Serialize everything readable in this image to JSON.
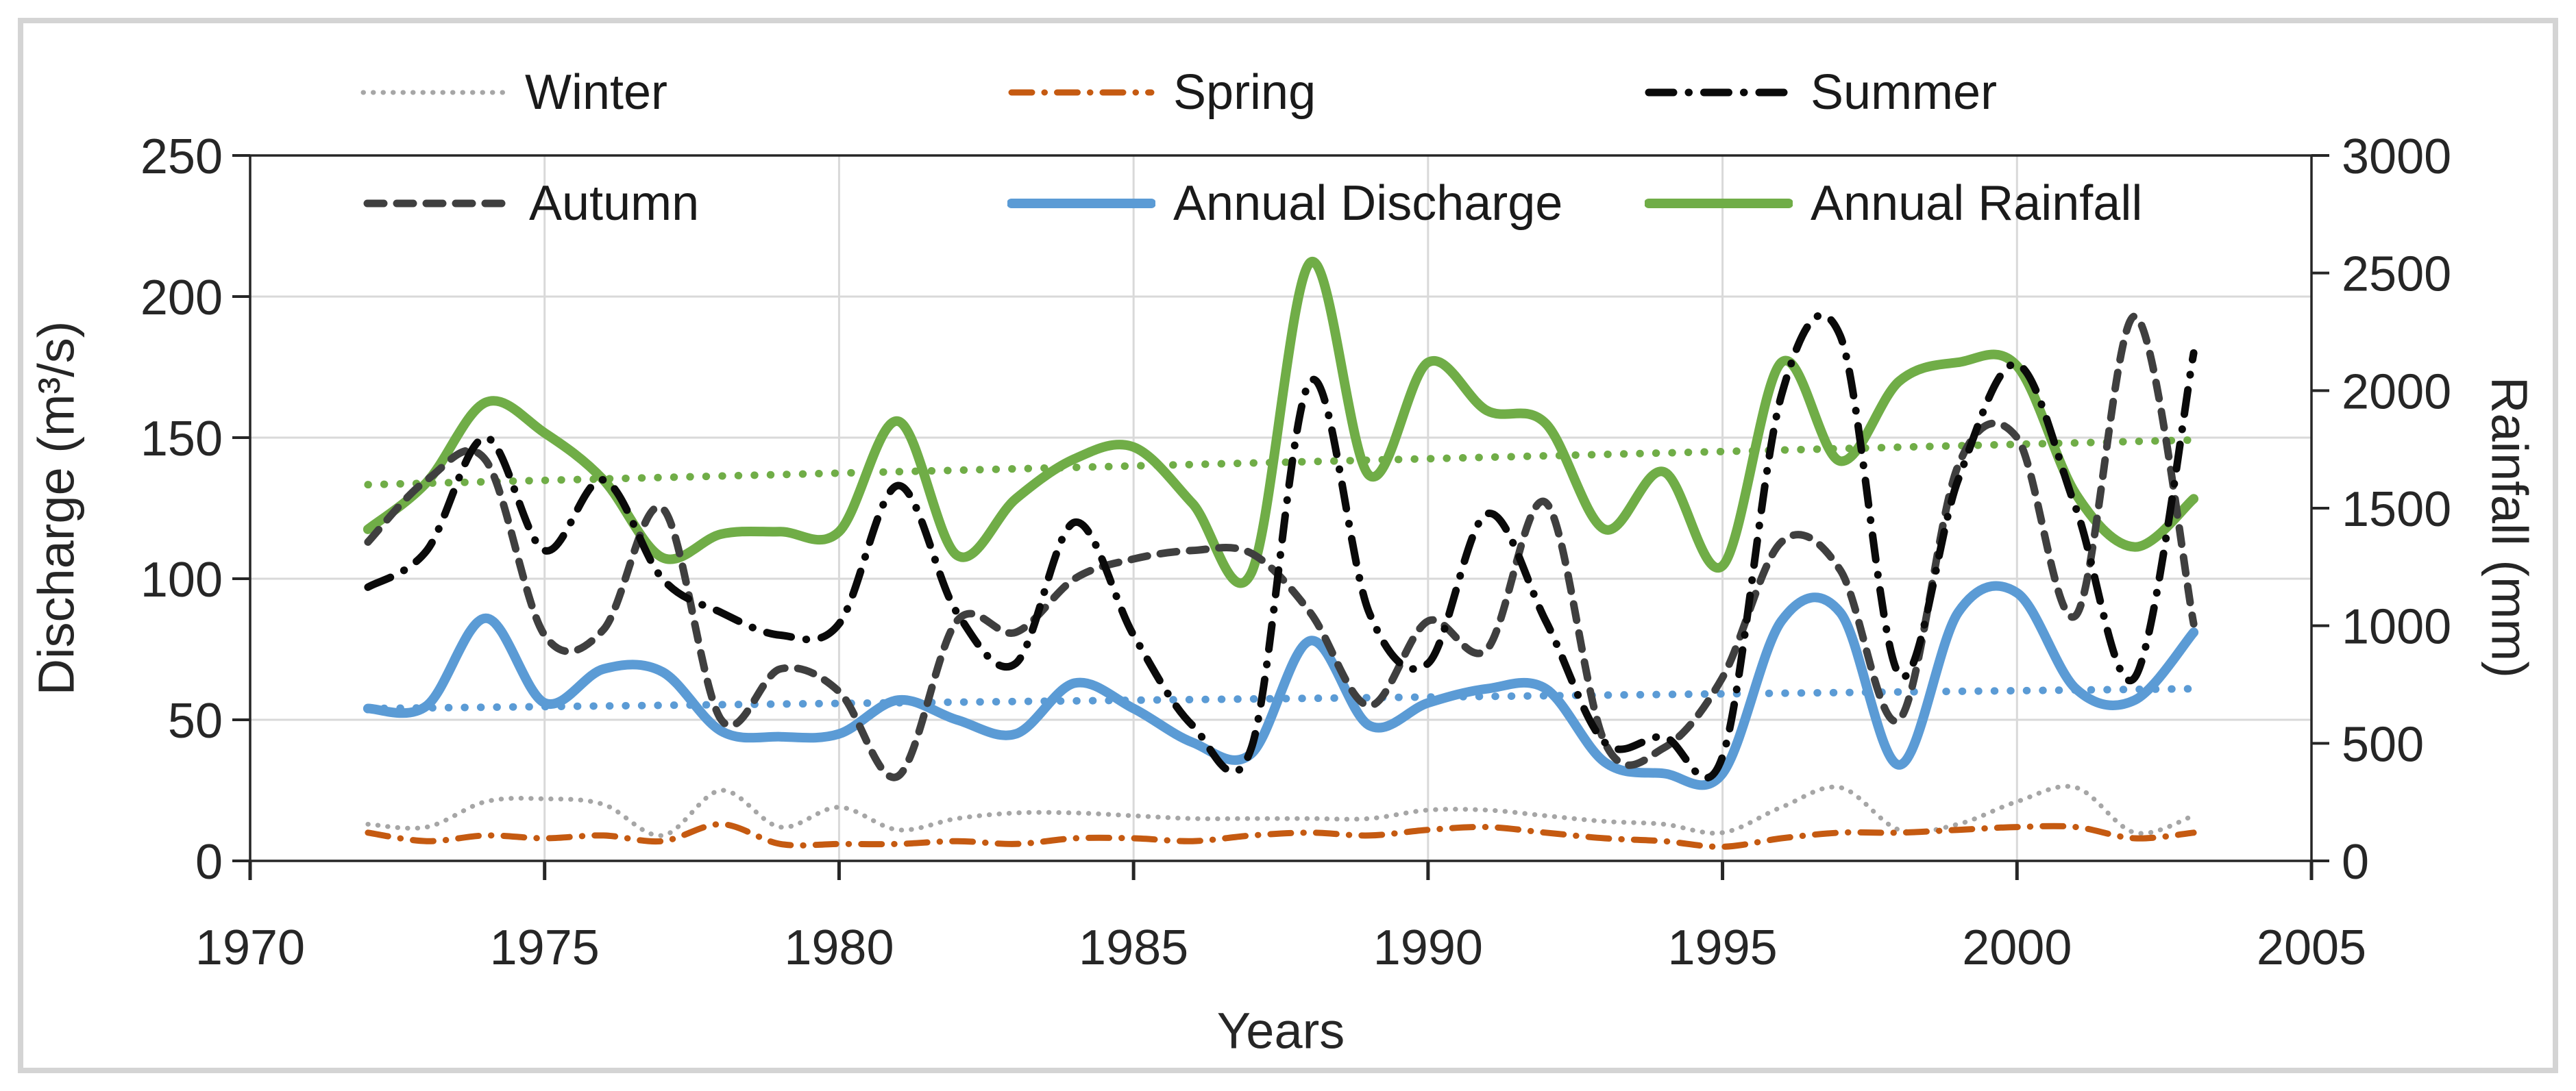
{
  "chart_data": {
    "type": "line",
    "title": "",
    "x_axis": {
      "title": "Years",
      "min": 1970,
      "max": 2005,
      "ticks": [
        1970,
        1975,
        1980,
        1985,
        1990,
        1995,
        2000,
        2005
      ]
    },
    "left_axis": {
      "title": "Discharge (m³/s)",
      "min": 0,
      "max": 250,
      "ticks": [
        0,
        50,
        100,
        150,
        200,
        250
      ]
    },
    "right_axis": {
      "title": "Rainfall (mm)",
      "min": 0,
      "max": 3000,
      "ticks": [
        0,
        500,
        1000,
        1500,
        2000,
        2500,
        3000
      ]
    },
    "grid": true,
    "legend_position": "top",
    "x": [
      1972,
      1973,
      1974,
      1975,
      1976,
      1977,
      1978,
      1979,
      1980,
      1981,
      1982,
      1983,
      1984,
      1985,
      1986,
      1987,
      1988,
      1989,
      1990,
      1991,
      1992,
      1993,
      1994,
      1995,
      1996,
      1997,
      1998,
      1999,
      2000,
      2001,
      2002,
      2003
    ],
    "series": [
      {
        "key": "winter",
        "label": "Winter",
        "axis": "left",
        "color": "#a6a6a6",
        "style": "dot",
        "width": 7,
        "values": [
          13,
          12,
          21,
          22,
          20,
          9,
          25,
          12,
          19,
          11,
          15,
          17,
          17,
          16,
          15,
          15,
          15,
          15,
          18,
          18,
          16,
          14,
          13,
          10,
          19,
          26,
          11,
          13,
          21,
          26,
          10,
          16
        ]
      },
      {
        "key": "spring",
        "label": "Spring",
        "axis": "left",
        "color": "#c55a11",
        "style": "dashdot-small",
        "width": 9,
        "values": [
          10,
          7,
          9,
          8,
          9,
          7,
          13,
          6,
          6,
          6,
          7,
          6,
          8,
          8,
          7,
          9,
          10,
          9,
          11,
          12,
          10,
          8,
          7,
          5,
          8,
          10,
          10,
          11,
          12,
          12,
          8,
          10
        ]
      },
      {
        "key": "summer",
        "label": "Summer",
        "axis": "left",
        "color": "#0a0a0a",
        "style": "dashdot",
        "width": 11,
        "values": [
          97,
          110,
          150,
          110,
          135,
          100,
          88,
          80,
          84,
          133,
          88,
          70,
          120,
          80,
          48,
          40,
          170,
          88,
          70,
          123,
          85,
          42,
          44,
          37,
          165,
          186,
          66,
          135,
          176,
          125,
          65,
          180
        ]
      },
      {
        "key": "autumn",
        "label": "Autumn",
        "axis": "left",
        "color": "#3f3f3f",
        "style": "dash",
        "width": 11,
        "values": [
          113,
          135,
          142,
          80,
          82,
          125,
          50,
          68,
          60,
          30,
          85,
          81,
          100,
          107,
          110,
          109,
          88,
          55,
          85,
          75,
          127,
          42,
          40,
          65,
          113,
          103,
          50,
          140,
          150,
          87,
          193,
          84
        ]
      },
      {
        "key": "annual-discharge",
        "label": "Annual Discharge",
        "axis": "left",
        "color": "#5b9bd5",
        "style": "solid",
        "width": 14,
        "values": [
          54,
          55,
          86,
          56,
          68,
          67,
          46,
          44,
          45,
          57,
          50,
          45,
          63,
          54,
          42,
          38,
          78,
          48,
          56,
          61,
          61,
          35,
          31,
          31,
          85,
          88,
          34,
          88,
          95,
          61,
          57,
          81
        ]
      },
      {
        "key": "annual-rainfall",
        "label": "Annual Rainfall",
        "axis": "right",
        "color": "#70ad47",
        "style": "solid",
        "width": 14,
        "values": [
          1410,
          1610,
          1950,
          1820,
          1620,
          1290,
          1390,
          1400,
          1400,
          1870,
          1300,
          1540,
          1710,
          1760,
          1520,
          1225,
          2545,
          1640,
          2120,
          1915,
          1860,
          1410,
          1655,
          1255,
          2120,
          1700,
          2040,
          2120,
          2105,
          1560,
          1335,
          1540
        ]
      }
    ],
    "trendlines": [
      {
        "key": "annual-discharge-trend",
        "axis": "left",
        "color": "#5b9bd5",
        "style": "trend-dot",
        "width": 11,
        "x_start": 1972,
        "x_end": 2003,
        "start": 54,
        "end": 61
      },
      {
        "key": "annual-rainfall-trend",
        "axis": "right",
        "color": "#70ad47",
        "style": "trend-dot",
        "width": 11,
        "x_start": 1972,
        "x_end": 2003,
        "start": 1600,
        "end": 1790
      }
    ],
    "colors": {
      "grid": "#d9d9d9",
      "plot_border": "#262626",
      "tick_text": "#262626",
      "frame_border": "#d4d4d4"
    }
  }
}
